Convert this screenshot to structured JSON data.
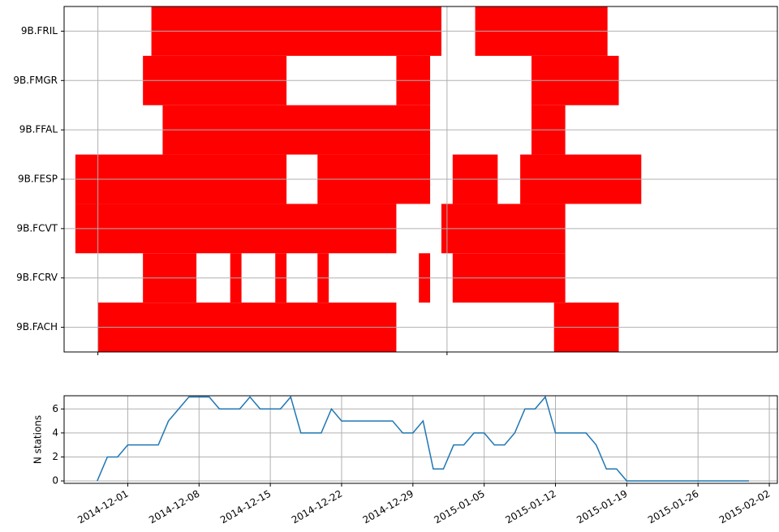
{
  "chart_data": [
    {
      "type": "gantt",
      "categories": [
        "9B.FRIL",
        "9B.FMGR",
        "9B.FFAL",
        "9B.FESP",
        "9B.FCVT",
        "9B.FCRV",
        "9B.FACH"
      ],
      "segments": [
        [
          [
            "2014-12-05T18:00",
            "2014-12-31T12:00"
          ],
          [
            "2015-01-03T12:00",
            "2015-01-15T06:00"
          ]
        ],
        [
          [
            "2014-12-05T00:00",
            "2014-12-17T18:00"
          ],
          [
            "2014-12-27T12:00",
            "2014-12-30T12:00"
          ],
          [
            "2015-01-08T12:00",
            "2015-01-16T06:00"
          ]
        ],
        [
          [
            "2014-12-06T18:00",
            "2014-12-30T12:00"
          ],
          [
            "2015-01-08T12:00",
            "2015-01-11T12:00"
          ]
        ],
        [
          [
            "2014-11-29T00:00",
            "2014-12-17T18:00"
          ],
          [
            "2014-12-20T12:00",
            "2014-12-30T12:00"
          ],
          [
            "2015-01-01T12:00",
            "2015-01-05T12:00"
          ],
          [
            "2015-01-07T12:00",
            "2015-01-18T06:00"
          ]
        ],
        [
          [
            "2014-11-29T00:00",
            "2014-12-27T12:00"
          ],
          [
            "2014-12-31T12:00",
            "2015-01-11T12:00"
          ]
        ],
        [
          [
            "2014-12-05T00:00",
            "2014-12-09T18:00"
          ],
          [
            "2014-12-12T18:00",
            "2014-12-13T18:00"
          ],
          [
            "2014-12-16T18:00",
            "2014-12-17T18:00"
          ],
          [
            "2014-12-20T12:00",
            "2014-12-21T12:00"
          ],
          [
            "2014-12-29T12:00",
            "2014-12-30T12:00"
          ],
          [
            "2015-01-01T12:00",
            "2015-01-11T12:00"
          ]
        ],
        [
          [
            "2014-12-01T00:00",
            "2014-12-27T12:00"
          ],
          [
            "2015-01-10T12:00",
            "2015-01-16T06:00"
          ]
        ]
      ],
      "color": "#ff0000",
      "xlim": [
        "2014-11-28T00:00",
        "2015-01-30T08:00"
      ],
      "xticks": [
        "2014-12-01",
        "2015-01-01"
      ],
      "grid": true
    },
    {
      "type": "line",
      "ylabel": "N stations",
      "x": [
        "2014-11-28",
        "2014-11-29",
        "2014-11-30",
        "2014-12-01",
        "2014-12-02",
        "2014-12-03",
        "2014-12-04",
        "2014-12-05",
        "2014-12-06",
        "2014-12-07",
        "2014-12-08",
        "2014-12-09",
        "2014-12-10",
        "2014-12-11",
        "2014-12-12",
        "2014-12-13",
        "2014-12-14",
        "2014-12-15",
        "2014-12-16",
        "2014-12-17",
        "2014-12-18",
        "2014-12-19",
        "2014-12-20",
        "2014-12-21",
        "2014-12-22",
        "2014-12-23",
        "2014-12-24",
        "2014-12-25",
        "2014-12-26",
        "2014-12-27",
        "2014-12-28",
        "2014-12-29",
        "2014-12-30",
        "2014-12-31",
        "2015-01-01",
        "2015-01-02",
        "2015-01-03",
        "2015-01-04",
        "2015-01-05",
        "2015-01-06",
        "2015-01-07",
        "2015-01-08",
        "2015-01-09",
        "2015-01-10",
        "2015-01-11",
        "2015-01-12",
        "2015-01-13",
        "2015-01-14",
        "2015-01-15",
        "2015-01-16",
        "2015-01-17",
        "2015-01-18",
        "2015-01-19",
        "2015-01-20",
        "2015-01-21",
        "2015-01-22",
        "2015-01-23",
        "2015-01-24",
        "2015-01-25",
        "2015-01-26",
        "2015-01-27",
        "2015-01-28",
        "2015-01-29",
        "2015-01-30",
        "2015-01-31"
      ],
      "values": [
        0,
        2,
        2,
        3,
        3,
        3,
        3,
        5,
        6,
        7,
        7,
        7,
        6,
        6,
        6,
        7,
        6,
        6,
        6,
        7,
        4,
        4,
        4,
        6,
        5,
        5,
        5,
        5,
        5,
        5,
        4,
        4,
        5,
        1,
        1,
        3,
        3,
        4,
        4,
        3,
        3,
        4,
        6,
        6,
        7,
        4,
        4,
        4,
        4,
        3,
        1,
        1,
        0,
        0,
        0,
        0,
        0,
        0,
        0,
        0,
        0,
        0,
        0,
        0,
        0
      ],
      "color": "#1f77b4",
      "xlim": [
        "2014-11-24T18:00",
        "2015-02-02T19:00"
      ],
      "xticks": [
        "2014-12-01",
        "2014-12-08",
        "2014-12-15",
        "2014-12-22",
        "2014-12-29",
        "2015-01-05",
        "2015-01-12",
        "2015-01-19",
        "2015-01-26",
        "2015-02-02"
      ],
      "ylim": [
        -0.2,
        7.1
      ],
      "yticks": [
        0,
        2,
        4,
        6
      ],
      "grid": true
    }
  ]
}
